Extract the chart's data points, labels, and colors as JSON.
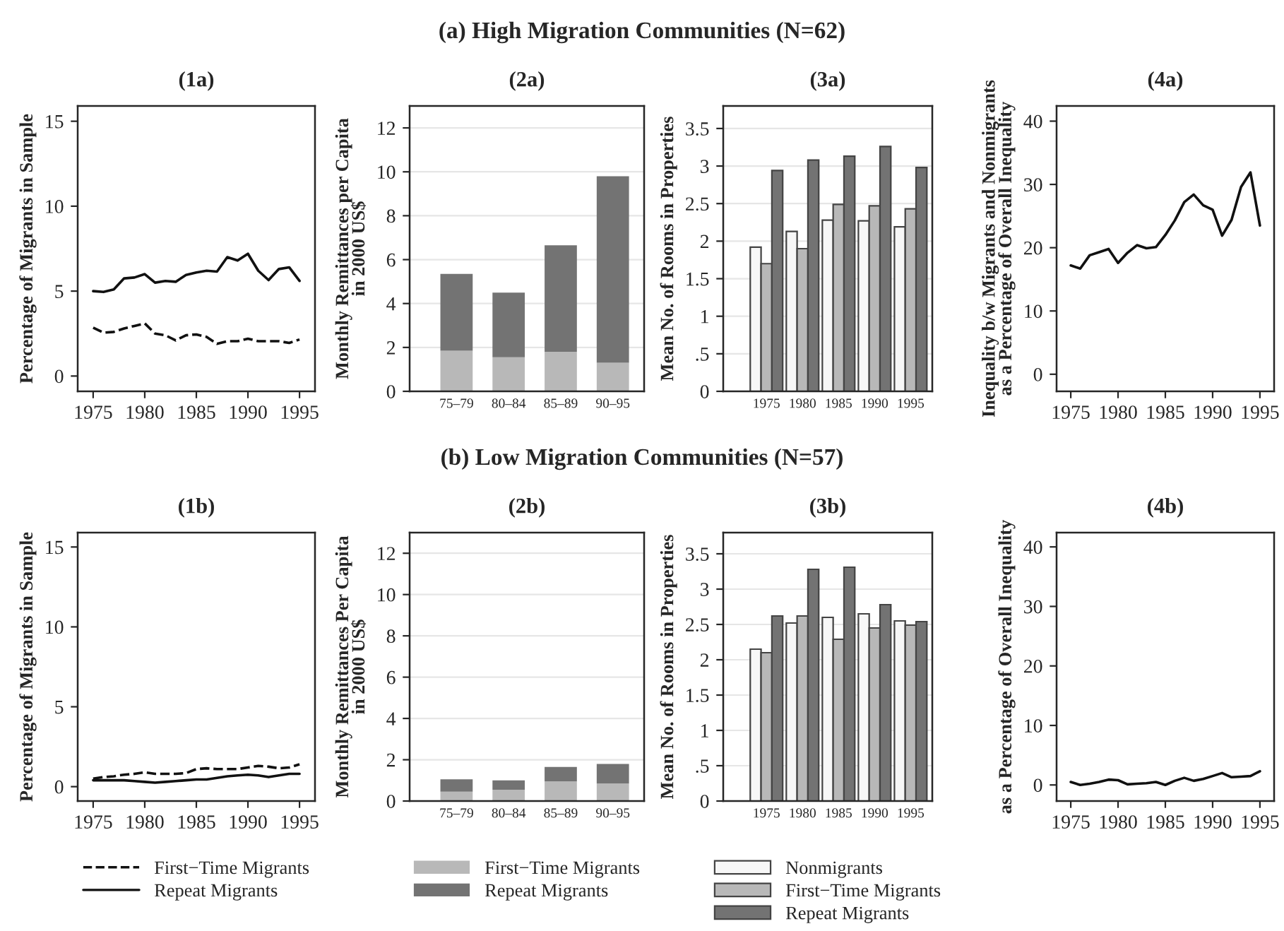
{
  "chart_data": [
    {
      "type": "line",
      "title": "(1a)",
      "annotations": [
        "(a) High Migration Communities (N=62)"
      ],
      "ylabel": "Percentage of Migrants in Sample",
      "x": [
        1975,
        1976,
        1977,
        1978,
        1979,
        1980,
        1981,
        1982,
        1983,
        1984,
        1985,
        1986,
        1987,
        1988,
        1989,
        1990,
        1991,
        1992,
        1993,
        1994,
        1995
      ],
      "xlim": [
        1973.5,
        1996.5
      ],
      "xticks": [
        1975,
        1980,
        1985,
        1990,
        1995
      ],
      "ylim": [
        -0.9,
        15.9
      ],
      "yticks": [
        0,
        5,
        10,
        15
      ],
      "grid": false,
      "series": [
        {
          "color": "#111111",
          "line_style": "dashed",
          "values": [
            2.85,
            2.55,
            2.6,
            2.8,
            2.95,
            3.1,
            2.5,
            2.4,
            2.1,
            2.4,
            2.45,
            2.3,
            1.9,
            2.05,
            2.05,
            2.2,
            2.05,
            2.05,
            2.05,
            1.95,
            2.15
          ]
        },
        {
          "color": "#111111",
          "line_style": "solid",
          "values": [
            5.0,
            4.95,
            5.1,
            5.75,
            5.8,
            6.0,
            5.5,
            5.6,
            5.55,
            5.95,
            6.1,
            6.2,
            6.15,
            7.0,
            6.8,
            7.2,
            6.2,
            5.65,
            6.3,
            6.4,
            5.6
          ]
        }
      ]
    },
    {
      "type": "bar",
      "stacked": true,
      "title": "(2a)",
      "ylabel": "Monthly Remittances per Capita\nin 2000 US$",
      "categories": [
        "75–79",
        "80–84",
        "85–89",
        "90–95"
      ],
      "ylim": [
        0,
        13
      ],
      "yticks": [
        0,
        2,
        4,
        6,
        8,
        10,
        12
      ],
      "grid": "y",
      "series": [
        {
          "color": "#b8b8b8",
          "values": [
            1.85,
            1.55,
            1.8,
            1.3
          ]
        },
        {
          "color": "#737373",
          "values": [
            3.5,
            2.95,
            4.85,
            8.5
          ]
        }
      ]
    },
    {
      "type": "bar",
      "title": "(3a)",
      "ylabel": "Mean No. of Rooms in Properties",
      "categories": [
        "1975",
        "1980",
        "1985",
        "1990",
        "1995"
      ],
      "ylim": [
        0,
        3.8
      ],
      "yticks": [
        0,
        {
          "value": 0.5,
          "label": ".5"
        },
        1,
        1.5,
        2,
        2.5,
        3,
        3.5
      ],
      "grid": "y",
      "series": [
        {
          "color": "#f7f7f7",
          "values": [
            1.92,
            2.13,
            2.28,
            2.27,
            2.19
          ]
        },
        {
          "color": "#b8b8b8",
          "values": [
            1.7,
            1.9,
            2.49,
            2.47,
            2.43
          ]
        },
        {
          "color": "#737373",
          "values": [
            2.94,
            3.08,
            3.13,
            3.26,
            2.98
          ]
        }
      ]
    },
    {
      "type": "line",
      "title": "(4a)",
      "ylabel": "Inequality b/w Migrants and Nonmigrants\nas a Percentage of Overall Inequality",
      "x": [
        1975,
        1976,
        1977,
        1978,
        1979,
        1980,
        1981,
        1982,
        1983,
        1984,
        1985,
        1986,
        1987,
        1988,
        1989,
        1990,
        1991,
        1992,
        1993,
        1994,
        1995
      ],
      "xlim": [
        1973.5,
        1996.5
      ],
      "xticks": [
        1975,
        1980,
        1985,
        1990,
        1995
      ],
      "ylim": [
        -2.7,
        42.4
      ],
      "yticks": [
        0,
        10,
        20,
        30,
        40
      ],
      "grid": false,
      "series": [
        {
          "color": "#111111",
          "line_style": "solid",
          "values": [
            17.2,
            16.7,
            18.8,
            19.3,
            19.8,
            17.6,
            19.2,
            20.4,
            19.9,
            20.1,
            22.0,
            24.3,
            27.2,
            28.4,
            26.7,
            26.0,
            21.9,
            24.4,
            29.6,
            31.9,
            23.5
          ]
        }
      ]
    },
    {
      "type": "line",
      "title": "(1b)",
      "annotations": [
        "(b) Low Migration Communities (N=57)"
      ],
      "ylabel": "Percentage of Migrants in Sample",
      "x": [
        1975,
        1976,
        1977,
        1978,
        1979,
        1980,
        1981,
        1982,
        1983,
        1984,
        1985,
        1986,
        1987,
        1988,
        1989,
        1990,
        1991,
        1992,
        1993,
        1994,
        1995
      ],
      "xlim": [
        1973.5,
        1996.5
      ],
      "xticks": [
        1975,
        1980,
        1985,
        1990,
        1995
      ],
      "ylim": [
        -0.9,
        15.9
      ],
      "yticks": [
        0,
        5,
        10,
        15
      ],
      "grid": false,
      "legend": "bottom",
      "series": [
        {
          "name": "First−Time Migrants",
          "color": "#111111",
          "line_style": "dashed",
          "values": [
            0.5,
            0.6,
            0.65,
            0.75,
            0.8,
            0.9,
            0.8,
            0.8,
            0.8,
            0.85,
            1.1,
            1.15,
            1.1,
            1.1,
            1.1,
            1.2,
            1.3,
            1.25,
            1.15,
            1.2,
            1.4
          ]
        },
        {
          "name": "Repeat Migrants",
          "color": "#111111",
          "line_style": "solid",
          "values": [
            0.4,
            0.4,
            0.4,
            0.4,
            0.35,
            0.3,
            0.25,
            0.3,
            0.35,
            0.4,
            0.45,
            0.45,
            0.55,
            0.65,
            0.7,
            0.75,
            0.7,
            0.6,
            0.7,
            0.8,
            0.8
          ]
        }
      ]
    },
    {
      "type": "bar",
      "stacked": true,
      "title": "(2b)",
      "ylabel": "Monthly Remittances Per Capita\nin 2000 US$",
      "categories": [
        "75–79",
        "80–84",
        "85–89",
        "90–95"
      ],
      "ylim": [
        0,
        13
      ],
      "yticks": [
        0,
        2,
        4,
        6,
        8,
        10,
        12
      ],
      "grid": "y",
      "legend": "bottom",
      "series": [
        {
          "name": "First−Time Migrants",
          "color": "#b8b8b8",
          "values": [
            0.45,
            0.55,
            0.95,
            0.85
          ]
        },
        {
          "name": "Repeat Migrants",
          "color": "#737373",
          "values": [
            0.6,
            0.45,
            0.7,
            0.95
          ]
        }
      ]
    },
    {
      "type": "bar",
      "title": "(3b)",
      "ylabel": "Mean No. of Rooms in Properties",
      "categories": [
        "1975",
        "1980",
        "1985",
        "1990",
        "1995"
      ],
      "ylim": [
        0,
        3.8
      ],
      "yticks": [
        0,
        {
          "value": 0.5,
          "label": ".5"
        },
        1,
        1.5,
        2,
        2.5,
        3,
        3.5
      ],
      "grid": "y",
      "legend": "bottom",
      "series": [
        {
          "name": "Nonmigrants",
          "color": "#f7f7f7",
          "values": [
            2.15,
            2.52,
            2.6,
            2.65,
            2.55
          ]
        },
        {
          "name": "First−Time Migrants",
          "color": "#b8b8b8",
          "values": [
            2.1,
            2.62,
            2.29,
            2.45,
            2.49
          ]
        },
        {
          "name": "Repeat Migrants",
          "color": "#737373",
          "values": [
            2.62,
            3.28,
            3.31,
            2.78,
            2.54
          ]
        }
      ]
    },
    {
      "type": "line",
      "title": "(4b)",
      "ylabel": "as a Percentage of Overall Inequality",
      "x": [
        1975,
        1976,
        1977,
        1978,
        1979,
        1980,
        1981,
        1982,
        1983,
        1984,
        1985,
        1986,
        1987,
        1988,
        1989,
        1990,
        1991,
        1992,
        1993,
        1994,
        1995
      ],
      "xlim": [
        1973.5,
        1996.5
      ],
      "xticks": [
        1975,
        1980,
        1985,
        1990,
        1995
      ],
      "ylim": [
        -2.7,
        42.4
      ],
      "yticks": [
        0,
        10,
        20,
        30,
        40
      ],
      "grid": false,
      "series": [
        {
          "color": "#111111",
          "line_style": "solid",
          "values": [
            0.5,
            0.0,
            0.2,
            0.5,
            0.9,
            0.8,
            0.1,
            0.2,
            0.3,
            0.5,
            0.0,
            0.7,
            1.2,
            0.7,
            1.0,
            1.5,
            2.0,
            1.3,
            1.4,
            1.5,
            2.3
          ]
        }
      ]
    }
  ]
}
